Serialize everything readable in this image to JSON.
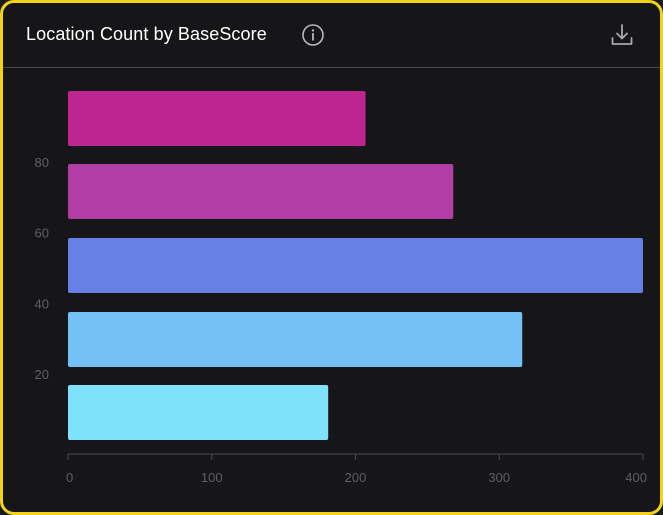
{
  "header": {
    "title": "Location Count by BaseScore",
    "info_icon": "info-icon",
    "download_icon": "download-icon"
  },
  "colors": {
    "card_border": "#f2d21b",
    "card_background": "#161618",
    "axis": "#4a4a4e",
    "tick_label": "#5f5f63"
  },
  "chart_data": {
    "type": "bar",
    "orientation": "horizontal",
    "title": "Location Count by BaseScore",
    "xlabel": "",
    "ylabel": "",
    "x_ticks": [
      0,
      100,
      200,
      300,
      400
    ],
    "y_ticks": [
      20,
      40,
      60,
      80
    ],
    "xlim": [
      0,
      400
    ],
    "ylim": [
      0,
      100
    ],
    "grid": false,
    "bars": [
      {
        "value": 207,
        "color": "#bd2690"
      },
      {
        "value": 268,
        "color": "#b13da6"
      },
      {
        "value": 400,
        "color": "#6680e6"
      },
      {
        "value": 316,
        "color": "#74c2f5"
      },
      {
        "value": 181,
        "color": "#7fe2fd"
      }
    ]
  }
}
